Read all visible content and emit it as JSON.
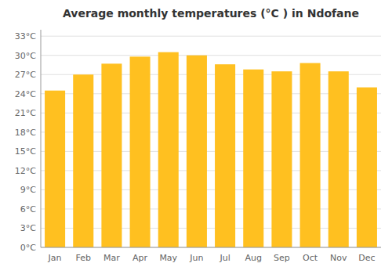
{
  "chart_data": {
    "type": "bar",
    "title": "Average monthly temperatures (°C ) in Ndofane",
    "categories": [
      "Jan",
      "Feb",
      "Mar",
      "Apr",
      "May",
      "Jun",
      "Jul",
      "Aug",
      "Sep",
      "Oct",
      "Nov",
      "Dec"
    ],
    "values": [
      24.5,
      27.0,
      28.7,
      29.8,
      30.5,
      30.0,
      28.6,
      27.8,
      27.5,
      28.8,
      27.5,
      25.0
    ],
    "color": "#FFC020",
    "ylim": [
      0,
      34
    ],
    "yticks": [
      {
        "value": 0,
        "label": "0°C"
      },
      {
        "value": 3,
        "label": "3°C"
      },
      {
        "value": 6,
        "label": "6°C"
      },
      {
        "value": 9,
        "label": "9°C"
      },
      {
        "value": 12,
        "label": "12°C"
      },
      {
        "value": 15,
        "label": "15°C"
      },
      {
        "value": 18,
        "label": "18°C"
      },
      {
        "value": 21,
        "label": "21°C"
      },
      {
        "value": 24,
        "label": "24°C"
      },
      {
        "value": 27,
        "label": "27°C"
      },
      {
        "value": 30,
        "label": "30°C"
      },
      {
        "value": 33,
        "label": "33°C"
      }
    ],
    "grid": true
  }
}
